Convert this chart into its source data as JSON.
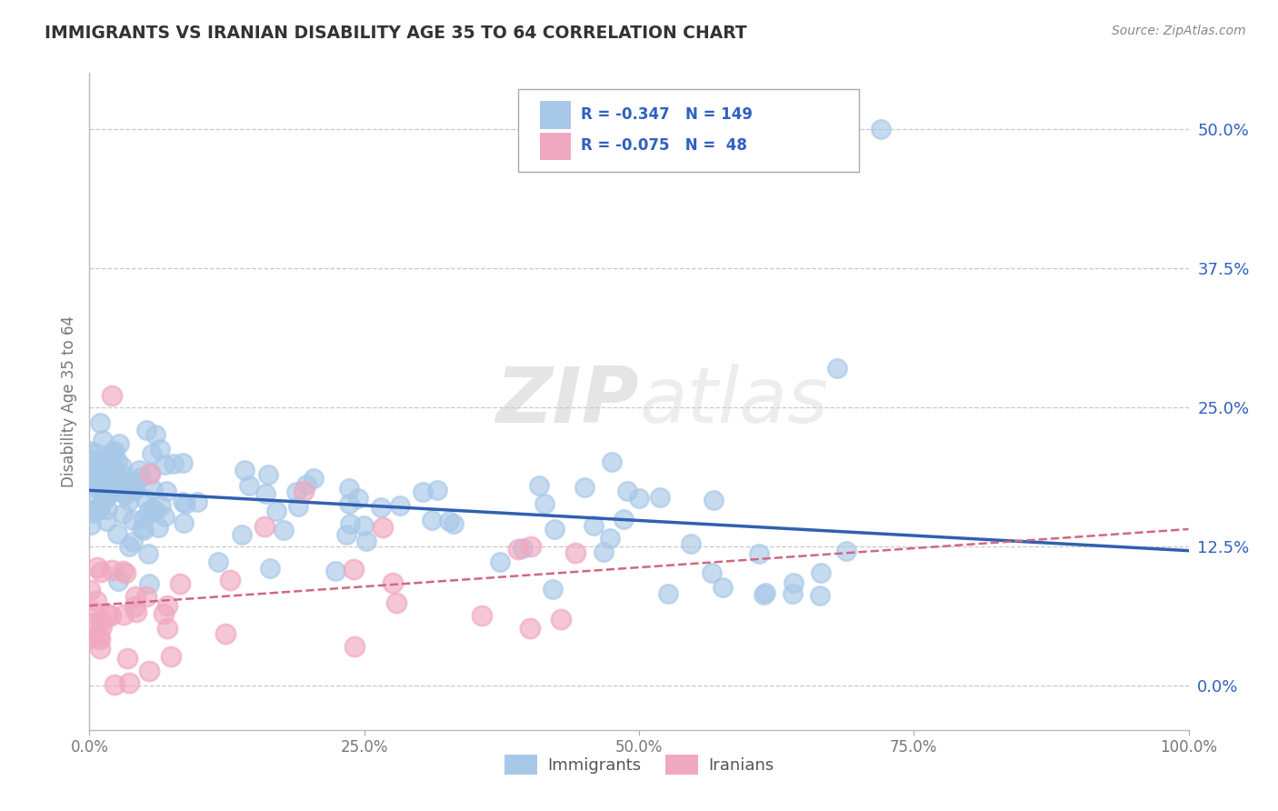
{
  "title": "IMMIGRANTS VS IRANIAN DISABILITY AGE 35 TO 64 CORRELATION CHART",
  "source": "Source: ZipAtlas.com",
  "ylabel": "Disability Age 35 to 64",
  "xlim": [
    0.0,
    1.0
  ],
  "ylim": [
    -0.04,
    0.55
  ],
  "xticks": [
    0.0,
    0.25,
    0.5,
    0.75,
    1.0
  ],
  "xtick_labels": [
    "0.0%",
    "25.0%",
    "50.0%",
    "75.0%",
    "100.0%"
  ],
  "yticks": [
    0.0,
    0.125,
    0.25,
    0.375,
    0.5
  ],
  "ytick_labels": [
    "0.0%",
    "12.5%",
    "25.0%",
    "37.5%",
    "50.0%"
  ],
  "immigrants_R": -0.347,
  "immigrants_N": 149,
  "iranians_R": -0.075,
  "iranians_N": 48,
  "immigrants_color": "#a8c8e8",
  "iranians_color": "#f0a8c0",
  "immigrants_line_color": "#3060b0",
  "iranians_line_color": "#d06880",
  "watermark_zip": "ZIP",
  "watermark_atlas": "atlas",
  "background_color": "#ffffff",
  "grid_color": "#c8c8c8",
  "legend_text_color": "#3060c0",
  "legend_border_color": "#aaaaaa"
}
